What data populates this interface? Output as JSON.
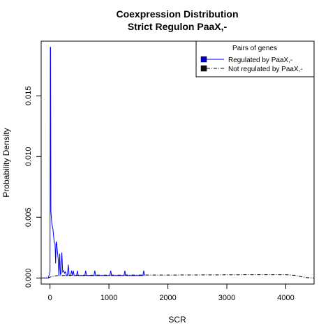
{
  "chart_data": {
    "type": "line",
    "title": "Coexpression Distribution",
    "subtitle": "Strict Regulon PaaX,-",
    "xlabel": "SCR",
    "ylabel": "Probability Density",
    "xlim": [
      -150,
      4480
    ],
    "ylim": [
      -0.0005,
      0.0195
    ],
    "x_ticks": [
      0,
      1000,
      2000,
      3000,
      4000
    ],
    "x_tick_labels": [
      "0",
      "1000",
      "2000",
      "3000",
      "4000"
    ],
    "y_ticks": [
      0.0,
      0.005,
      0.01,
      0.015
    ],
    "y_tick_labels": [
      "0.000",
      "0.005",
      "0.010",
      "0.015"
    ],
    "grid": false,
    "legend": {
      "title": "Pairs of genes",
      "position": "top-right",
      "entries": [
        "Regulated by  PaaX,-",
        "Not regulated by  PaaX,-"
      ]
    },
    "series": [
      {
        "name": "Regulated by  PaaX,-",
        "color": "#0000ff",
        "style": "solid",
        "points": [
          [
            -100,
            0.0
          ],
          [
            -30,
            0.0
          ],
          [
            0,
            0.0005
          ],
          [
            5,
            0.019
          ],
          [
            10,
            0.019
          ],
          [
            15,
            0.0055
          ],
          [
            30,
            0.0045
          ],
          [
            50,
            0.004
          ],
          [
            70,
            0.003
          ],
          [
            85,
            0.0028
          ],
          [
            95,
            0.0012
          ],
          [
            105,
            0.003
          ],
          [
            115,
            0.0028
          ],
          [
            125,
            0.0022
          ],
          [
            140,
            0.0015
          ],
          [
            150,
            0.0002
          ],
          [
            165,
            0.002
          ],
          [
            175,
            0.0003
          ],
          [
            185,
            0.0003
          ],
          [
            200,
            0.0021
          ],
          [
            215,
            0.0005
          ],
          [
            230,
            0.0006
          ],
          [
            245,
            0.0004
          ],
          [
            260,
            0.0005
          ],
          [
            280,
            0.0002
          ],
          [
            295,
            0.0002
          ],
          [
            310,
            0.0011
          ],
          [
            325,
            0.0002
          ],
          [
            350,
            0.0002
          ],
          [
            365,
            0.0006
          ],
          [
            380,
            0.0002
          ],
          [
            395,
            0.0006
          ],
          [
            410,
            0.0002
          ],
          [
            450,
            0.0002
          ],
          [
            465,
            0.0006
          ],
          [
            480,
            0.0002
          ],
          [
            590,
            0.0002
          ],
          [
            605,
            0.0006
          ],
          [
            620,
            0.0002
          ],
          [
            745,
            0.0002
          ],
          [
            760,
            0.0006
          ],
          [
            775,
            0.0002
          ],
          [
            1015,
            0.0002
          ],
          [
            1030,
            0.0006
          ],
          [
            1045,
            0.0002
          ],
          [
            1255,
            0.0002
          ],
          [
            1270,
            0.0006
          ],
          [
            1285,
            0.0002
          ],
          [
            1575,
            0.0002
          ],
          [
            1590,
            0.0006
          ],
          [
            1605,
            0.0002
          ]
        ]
      },
      {
        "name": "Not regulated by  PaaX,-",
        "color": "#000000",
        "style": "dashdot",
        "points": [
          [
            -150,
            0.0
          ],
          [
            -80,
            0.0
          ],
          [
            -30,
            0.0
          ],
          [
            20,
            0.0001
          ],
          [
            100,
            0.00018
          ],
          [
            300,
            0.00022
          ],
          [
            800,
            0.00023
          ],
          [
            1500,
            0.00024
          ],
          [
            2000,
            0.00024
          ],
          [
            3000,
            0.00026
          ],
          [
            3500,
            0.00027
          ],
          [
            4000,
            0.00027
          ],
          [
            4150,
            0.00022
          ],
          [
            4250,
            0.00012
          ],
          [
            4350,
            3e-05
          ],
          [
            4480,
            0.0
          ]
        ]
      }
    ]
  }
}
